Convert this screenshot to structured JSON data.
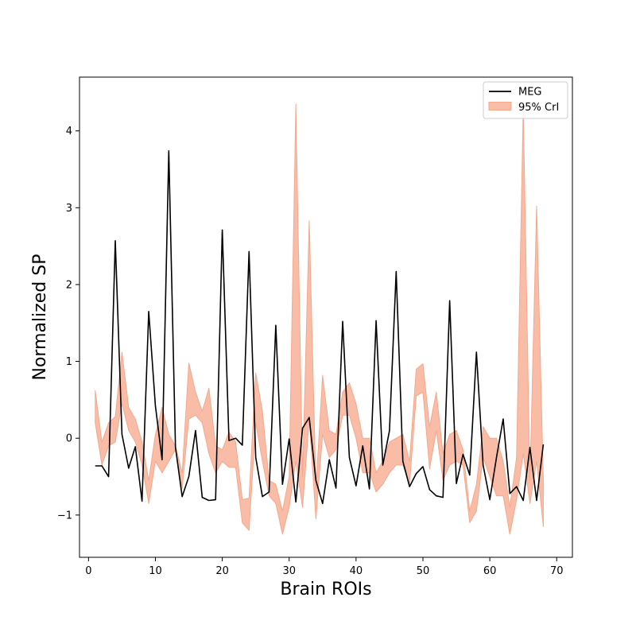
{
  "chart_data": {
    "type": "line",
    "xlabel": "Brain ROIs",
    "ylabel": "Normalized SP",
    "xlim": [
      -1.35,
      72.35
    ],
    "ylim": [
      -1.55,
      4.7
    ],
    "x_ticks": [
      0,
      10,
      20,
      30,
      40,
      50,
      60,
      70
    ],
    "x_tick_labels": [
      "0",
      "10",
      "20",
      "30",
      "40",
      "50",
      "60",
      "70"
    ],
    "y_ticks": [
      -1,
      0,
      1,
      2,
      3,
      4
    ],
    "y_tick_labels": [
      "−1",
      "0",
      "1",
      "2",
      "3",
      "4"
    ],
    "grid": false,
    "legend": {
      "location": "upper-right",
      "entries": [
        "MEG",
        "95% CrI"
      ]
    },
    "colors": {
      "meg_line": "#000000",
      "cri_fill": "#f7a285",
      "cri_edge": "#f4a98c"
    },
    "x": [
      1,
      2,
      3,
      4,
      5,
      6,
      7,
      8,
      9,
      10,
      11,
      12,
      13,
      14,
      15,
      16,
      17,
      18,
      19,
      20,
      21,
      22,
      23,
      24,
      25,
      26,
      27,
      28,
      29,
      30,
      31,
      32,
      33,
      34,
      35,
      36,
      37,
      38,
      39,
      40,
      41,
      42,
      43,
      44,
      45,
      46,
      47,
      48,
      49,
      50,
      51,
      52,
      53,
      54,
      55,
      56,
      57,
      58,
      59,
      60,
      61,
      62,
      63,
      64,
      65,
      66,
      67,
      68
    ],
    "series": [
      {
        "name": "MEG",
        "kind": "line",
        "values": [
          -0.36,
          -0.36,
          -0.5,
          2.57,
          0.05,
          -0.39,
          -0.11,
          -0.82,
          1.65,
          0.42,
          -0.28,
          3.74,
          -0.12,
          -0.76,
          -0.5,
          0.1,
          -0.77,
          -0.81,
          -0.8,
          2.71,
          -0.03,
          0.0,
          -0.09,
          2.43,
          -0.25,
          -0.76,
          -0.7,
          1.47,
          -0.6,
          -0.01,
          -0.83,
          0.13,
          0.27,
          -0.55,
          -0.85,
          -0.28,
          -0.65,
          1.52,
          -0.25,
          -0.62,
          -0.1,
          -0.66,
          1.53,
          -0.35,
          0.1,
          2.17,
          -0.3,
          -0.63,
          -0.46,
          -0.37,
          -0.67,
          -0.75,
          -0.77,
          1.79,
          -0.59,
          -0.21,
          -0.48,
          1.12,
          -0.35,
          -0.8,
          -0.25,
          0.25,
          -0.72,
          -0.63,
          -0.81,
          -0.12,
          -0.81,
          -0.08
        ]
      },
      {
        "name": "95% CrI",
        "kind": "band",
        "lower": [
          0.2,
          -0.35,
          -0.1,
          -0.05,
          0.45,
          0.1,
          -0.05,
          -0.35,
          -0.85,
          -0.3,
          -0.45,
          -0.3,
          -0.15,
          -0.65,
          0.25,
          0.3,
          0.2,
          -0.2,
          -0.45,
          -0.3,
          -0.38,
          -0.38,
          -1.1,
          -1.2,
          0.2,
          -0.3,
          -0.75,
          -0.85,
          -1.25,
          -0.9,
          -0.3,
          -0.9,
          0.25,
          -1.05,
          0.05,
          -0.25,
          -0.15,
          0.3,
          0.3,
          0.0,
          -0.45,
          -0.45,
          -0.7,
          -0.6,
          -0.45,
          -0.35,
          -0.35,
          -0.6,
          0.55,
          0.6,
          -0.4,
          0.1,
          -0.55,
          -0.35,
          -0.3,
          -0.35,
          -1.1,
          -0.95,
          -0.25,
          -0.5,
          -0.75,
          -0.75,
          -1.25,
          -0.8,
          -0.2,
          -0.85,
          -0.3,
          -1.15
        ],
        "upper": [
          0.62,
          -0.05,
          0.2,
          0.28,
          1.12,
          0.4,
          0.25,
          -0.05,
          -0.55,
          0.05,
          0.4,
          0.05,
          -0.1,
          -0.45,
          0.98,
          0.6,
          0.35,
          0.65,
          -0.1,
          -0.15,
          0.08,
          -0.05,
          -0.8,
          -0.78,
          0.85,
          0.35,
          -0.55,
          -0.6,
          -0.95,
          -0.5,
          4.35,
          -0.5,
          2.83,
          -0.65,
          0.82,
          0.1,
          0.05,
          0.6,
          0.72,
          0.45,
          0.0,
          0.0,
          -0.45,
          -0.3,
          -0.05,
          0.0,
          0.05,
          -0.3,
          0.9,
          0.97,
          0.15,
          0.6,
          -0.2,
          0.05,
          0.1,
          -0.15,
          -0.95,
          -0.6,
          0.15,
          0.0,
          0.0,
          -0.3,
          -0.9,
          -0.25,
          4.3,
          -0.55,
          3.02,
          -0.55
        ]
      }
    ]
  }
}
